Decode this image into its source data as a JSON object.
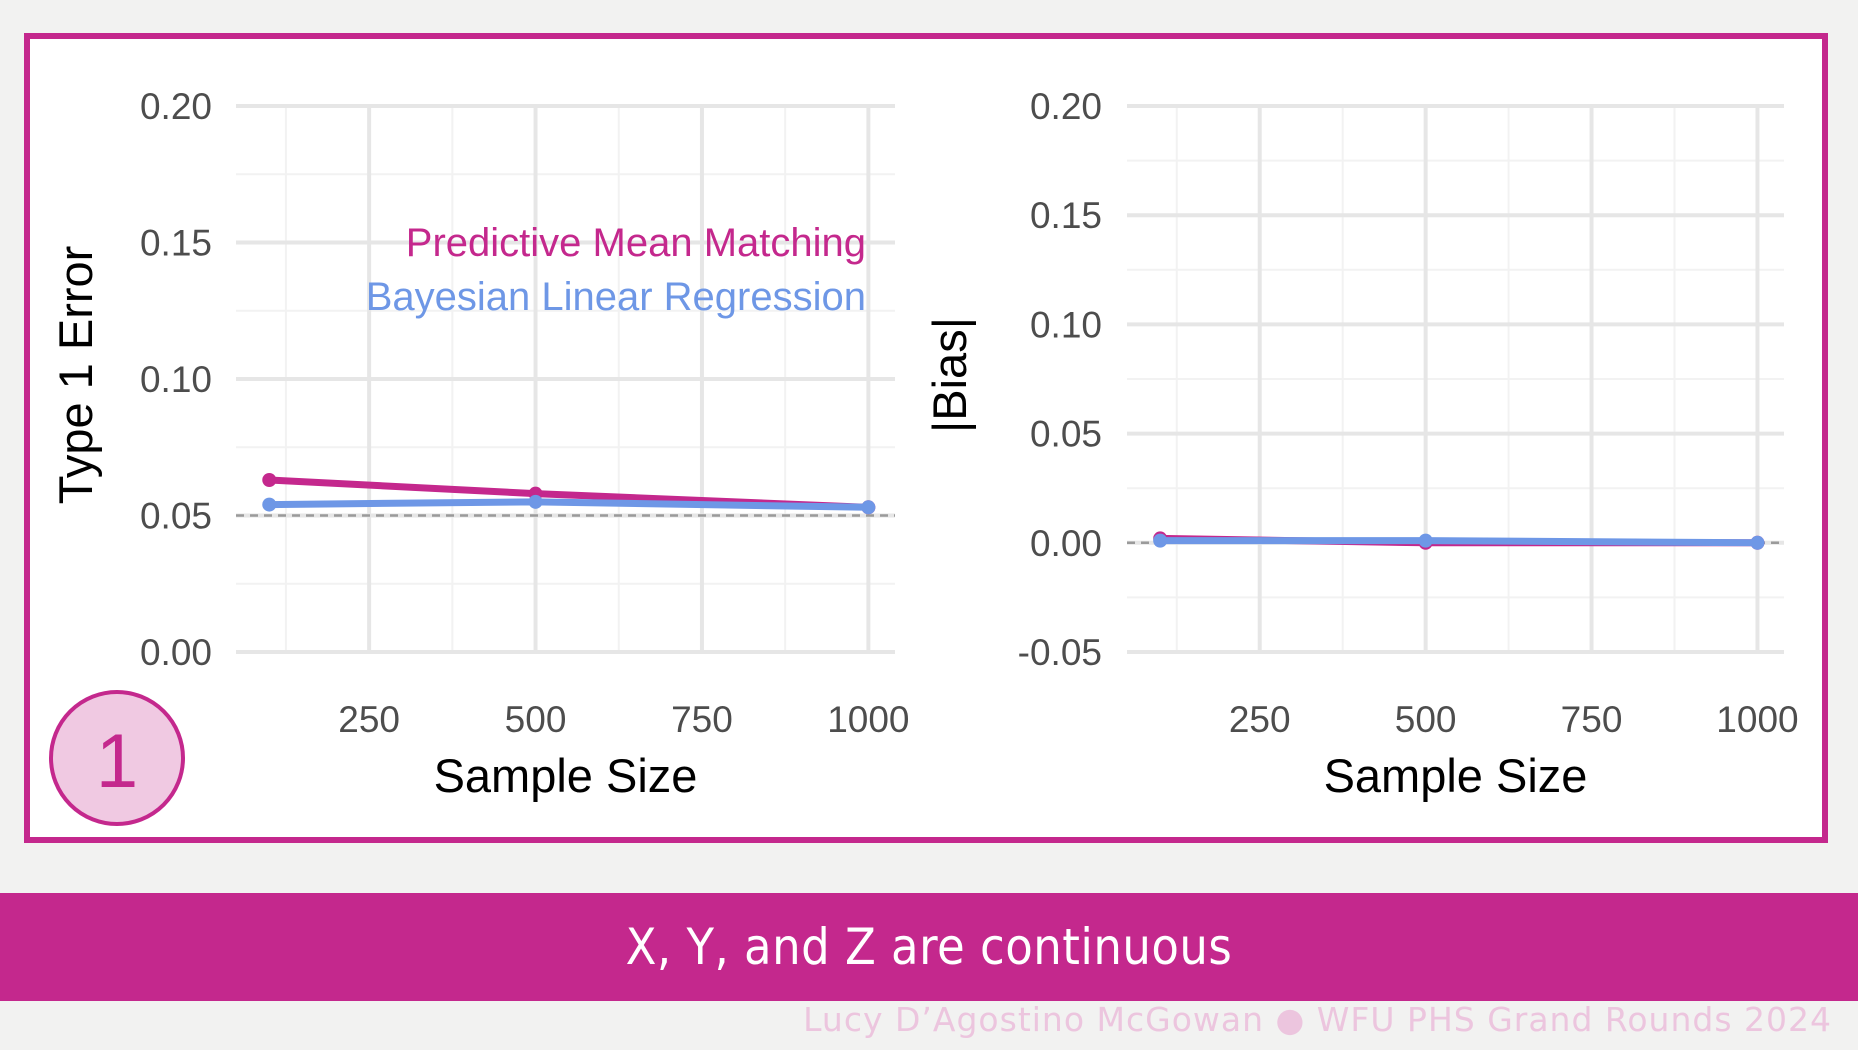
{
  "caption": "X, Y, and Z are continuous",
  "footer": "Lucy D’Agostino McGowan ● WFU PHS Grand Rounds 2024",
  "badge": {
    "label": "1"
  },
  "colors": {
    "accent": "#c4288d",
    "pmm": "#c4288d",
    "blr": "#6e97e6",
    "reference_line": "#9a9a9a"
  },
  "chart_data": [
    {
      "type": "line",
      "xlabel": "Sample Size",
      "ylabel": "Type 1 Error",
      "x": [
        100,
        500,
        1000
      ],
      "xlim": [
        50,
        1040
      ],
      "ylim": [
        0,
        0.2
      ],
      "xticks": [
        250,
        500,
        750,
        1000
      ],
      "xtick_labels": [
        "250",
        "500",
        "750",
        "1000"
      ],
      "yticks": [
        0,
        0.05,
        0.1,
        0.15,
        0.2
      ],
      "ytick_labels": [
        "0.00",
        "0.05",
        "0.10",
        "0.15",
        "0.20"
      ],
      "reference_line": 0.05,
      "grid": true,
      "legend_placement": "top-right (inside plot)",
      "series": [
        {
          "name": "Predictive Mean Matching",
          "color": "#c4288d",
          "values": [
            0.063,
            0.058,
            0.053
          ]
        },
        {
          "name": "Bayesian Linear Regression",
          "color": "#6e97e6",
          "values": [
            0.054,
            0.055,
            0.053
          ]
        }
      ]
    },
    {
      "type": "line",
      "xlabel": "Sample Size",
      "ylabel": "|Bias|",
      "x": [
        100,
        500,
        1000
      ],
      "xlim": [
        50,
        1040
      ],
      "ylim": [
        -0.05,
        0.2
      ],
      "xticks": [
        250,
        500,
        750,
        1000
      ],
      "xtick_labels": [
        "250",
        "500",
        "750",
        "1000"
      ],
      "yticks": [
        -0.05,
        0,
        0.05,
        0.1,
        0.15,
        0.2
      ],
      "ytick_labels": [
        "-0.05",
        "0.00",
        "0.05",
        "0.10",
        "0.15",
        "0.20"
      ],
      "reference_line": 0,
      "grid": true,
      "series": [
        {
          "name": "Predictive Mean Matching",
          "color": "#c4288d",
          "values": [
            0.002,
            0.0,
            0.0
          ]
        },
        {
          "name": "Bayesian Linear Regression",
          "color": "#6e97e6",
          "values": [
            0.001,
            0.001,
            0.0
          ]
        }
      ]
    }
  ]
}
